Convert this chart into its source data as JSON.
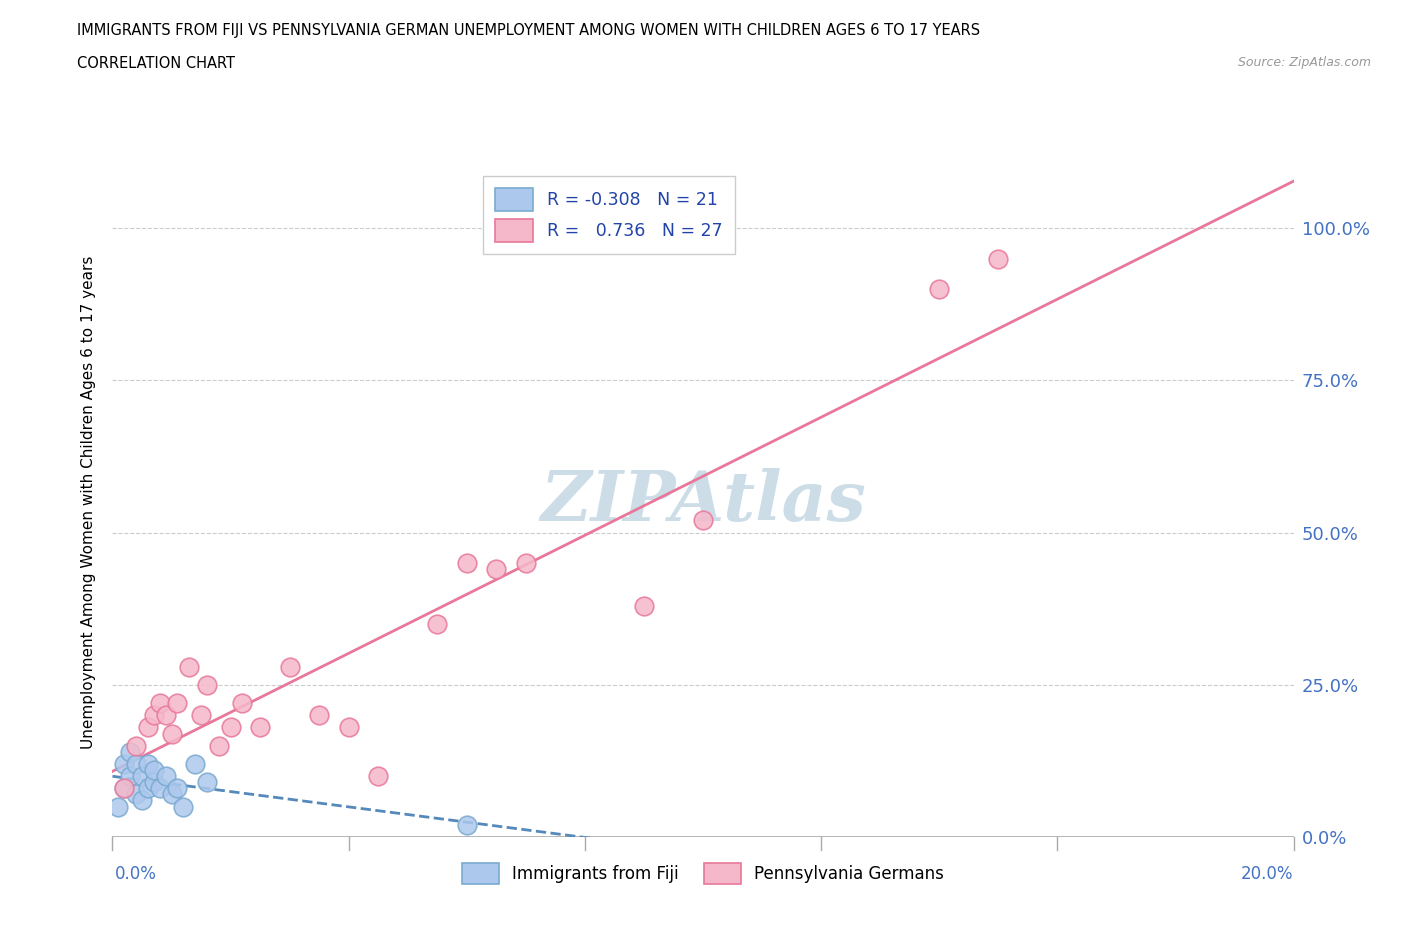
{
  "title": "IMMIGRANTS FROM FIJI VS PENNSYLVANIA GERMAN UNEMPLOYMENT AMONG WOMEN WITH CHILDREN AGES 6 TO 17 YEARS",
  "subtitle": "CORRELATION CHART",
  "source": "Source: ZipAtlas.com",
  "xlabel_bottom_left": "0.0%",
  "xlabel_bottom_right": "20.0%",
  "ylabel": "Unemployment Among Women with Children Ages 6 to 17 years",
  "yticks": [
    0.0,
    0.25,
    0.5,
    0.75,
    1.0
  ],
  "ytick_labels": [
    "0.0%",
    "25.0%",
    "50.0%",
    "75.0%",
    "100.0%"
  ],
  "legend_fiji_r": "-0.308",
  "legend_fiji_n": "21",
  "legend_pg_r": "0.736",
  "legend_pg_n": "27",
  "fiji_color": "#adc8ed",
  "fiji_edge_color": "#7aaacf",
  "pg_color": "#f5b8ca",
  "pg_edge_color": "#e8789a",
  "fiji_line_color": "#5588bb",
  "pg_line_color": "#e8789a",
  "watermark_color": "#ccdde8",
  "background_color": "#ffffff",
  "fiji_scatter_x": [
    0.001,
    0.002,
    0.002,
    0.003,
    0.003,
    0.004,
    0.004,
    0.005,
    0.005,
    0.006,
    0.006,
    0.007,
    0.007,
    0.008,
    0.009,
    0.01,
    0.011,
    0.012,
    0.014,
    0.016,
    0.06
  ],
  "fiji_scatter_y": [
    0.05,
    0.08,
    0.12,
    0.1,
    0.14,
    0.07,
    0.12,
    0.1,
    0.06,
    0.08,
    0.12,
    0.09,
    0.11,
    0.08,
    0.1,
    0.07,
    0.08,
    0.05,
    0.12,
    0.09,
    0.02
  ],
  "pg_scatter_x": [
    0.002,
    0.004,
    0.006,
    0.007,
    0.008,
    0.009,
    0.01,
    0.011,
    0.013,
    0.015,
    0.016,
    0.018,
    0.02,
    0.022,
    0.025,
    0.03,
    0.035,
    0.04,
    0.045,
    0.055,
    0.06,
    0.065,
    0.07,
    0.09,
    0.1,
    0.14,
    0.15
  ],
  "pg_scatter_y": [
    0.08,
    0.15,
    0.18,
    0.2,
    0.22,
    0.2,
    0.17,
    0.22,
    0.28,
    0.2,
    0.25,
    0.15,
    0.18,
    0.22,
    0.18,
    0.28,
    0.2,
    0.18,
    0.1,
    0.35,
    0.45,
    0.44,
    0.45,
    0.38,
    0.52,
    0.9,
    0.95
  ],
  "xmin": 0.0,
  "xmax": 0.2,
  "ymin": 0.0,
  "ymax": 1.1,
  "tick_color": "#4472c4"
}
